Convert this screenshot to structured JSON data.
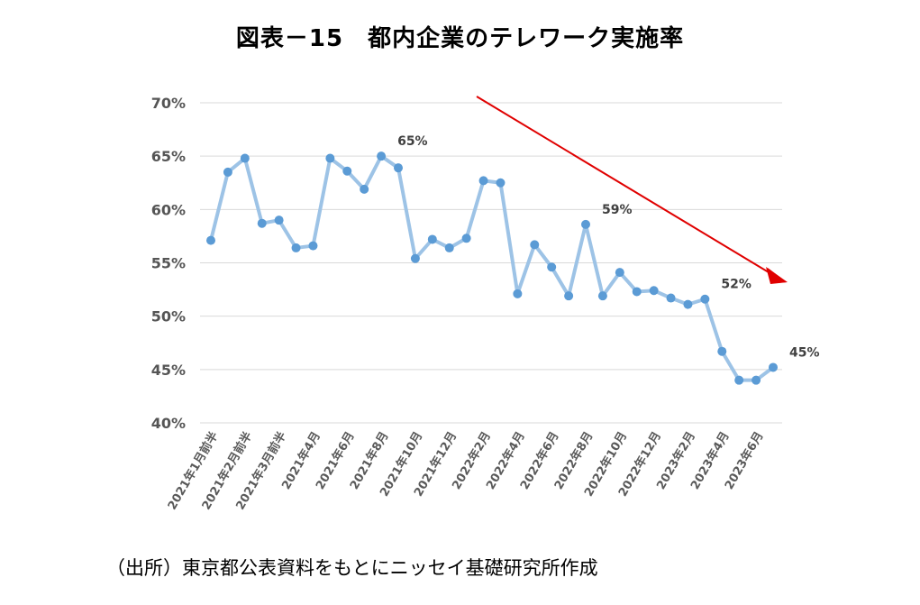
{
  "title": "図表－15　都内企業のテレワーク実施率",
  "source": "（出所）東京都公表資料をもとにニッセイ基礎研究所作成",
  "chart_data": {
    "type": "line",
    "title": "図表－15　都内企業のテレワーク実施率",
    "xlabel": "",
    "ylabel": "",
    "ylim": [
      40,
      70
    ],
    "yticks": [
      "70%",
      "65%",
      "60%",
      "55%",
      "50%",
      "45%",
      "40%"
    ],
    "ytick_values": [
      70,
      65,
      60,
      55,
      50,
      45,
      40
    ],
    "grid": true,
    "legend": "none",
    "line_color": "#9dc3e6",
    "marker_color": "#5b9bd5",
    "trend_arrow_color": "#e00000",
    "x_tick_labels": [
      {
        "index": 0,
        "label": "2021年1月前半"
      },
      {
        "index": 2,
        "label": "2021年2月前半"
      },
      {
        "index": 4,
        "label": "2021年3月前半"
      },
      {
        "index": 6,
        "label": "2021年4月"
      },
      {
        "index": 8,
        "label": "2021年6月"
      },
      {
        "index": 10,
        "label": "2021年8月"
      },
      {
        "index": 12,
        "label": "2021年10月"
      },
      {
        "index": 14,
        "label": "2021年12月"
      },
      {
        "index": 16,
        "label": "2022年2月"
      },
      {
        "index": 18,
        "label": "2022年4月"
      },
      {
        "index": 20,
        "label": "2022年6月"
      },
      {
        "index": 22,
        "label": "2022年8月"
      },
      {
        "index": 24,
        "label": "2022年10月"
      },
      {
        "index": 26,
        "label": "2022年12月"
      },
      {
        "index": 28,
        "label": "2023年2月"
      },
      {
        "index": 30,
        "label": "2023年4月"
      },
      {
        "index": 32,
        "label": "2023年6月"
      }
    ],
    "series": [
      {
        "values": [
          57.1,
          63.5,
          64.8,
          58.7,
          59.0,
          56.4,
          56.6,
          64.8,
          63.6,
          61.9,
          65.0,
          63.9,
          55.4,
          57.2,
          56.4,
          57.3,
          62.7,
          62.5,
          52.1,
          56.7,
          54.6,
          51.9,
          58.6,
          51.9,
          54.1,
          52.3,
          52.4,
          51.7,
          51.1,
          51.6,
          46.7,
          44.0,
          44.0,
          45.2
        ]
      }
    ],
    "annotations": [
      {
        "index": 10,
        "text": "65%"
      },
      {
        "index": 22,
        "text": "59%"
      },
      {
        "index": 29,
        "text": "52%"
      },
      {
        "index": 33,
        "text": "45%"
      }
    ]
  }
}
